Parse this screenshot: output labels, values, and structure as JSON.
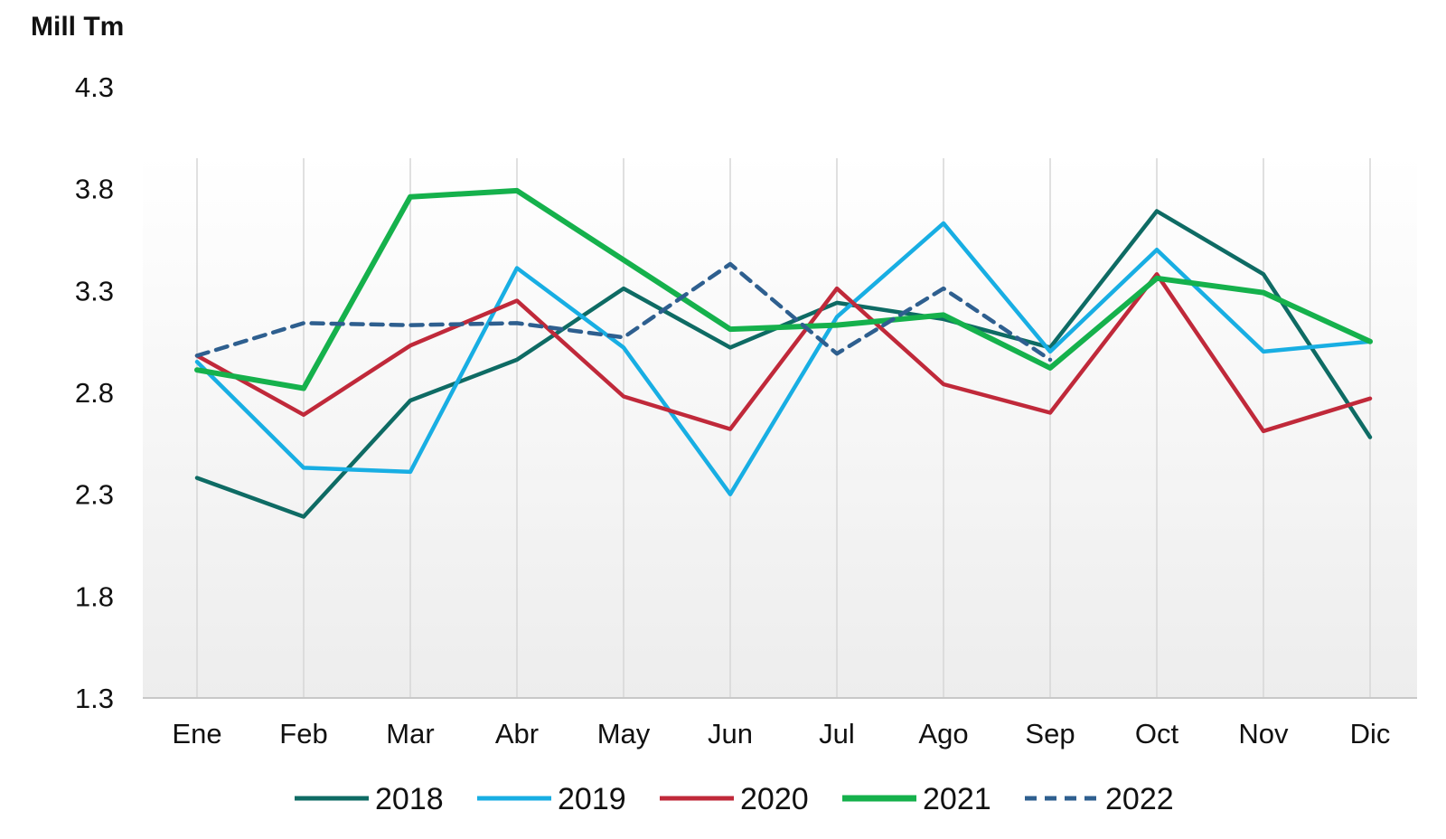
{
  "chart_data": {
    "type": "line",
    "ylabel": "Mill Tm",
    "ylim": [
      1.3,
      4.3
    ],
    "yticks": [
      "1.3",
      "1.8",
      "2.3",
      "2.8",
      "3.3",
      "3.8",
      "4.3"
    ],
    "categories": [
      "Ene",
      "Feb",
      "Mar",
      "Abr",
      "May",
      "Jun",
      "Jul",
      "Ago",
      "Sep",
      "Oct",
      "Nov",
      "Dic"
    ],
    "grid": "vertical",
    "legend_position": "bottom",
    "series": [
      {
        "name": "2018",
        "color": "#0e6b64",
        "dashed": false,
        "values": [
          2.38,
          2.19,
          2.76,
          2.96,
          3.31,
          3.02,
          3.24,
          3.16,
          3.02,
          3.69,
          3.38,
          2.58
        ]
      },
      {
        "name": "2019",
        "color": "#18aee3",
        "dashed": false,
        "values": [
          2.95,
          2.43,
          2.41,
          3.41,
          3.02,
          2.3,
          3.17,
          3.63,
          3.0,
          3.5,
          3.0,
          3.05
        ]
      },
      {
        "name": "2020",
        "color": "#c0293a",
        "dashed": false,
        "values": [
          2.98,
          2.69,
          3.03,
          3.25,
          2.78,
          2.62,
          3.31,
          2.84,
          2.7,
          3.38,
          2.61,
          2.77
        ]
      },
      {
        "name": "2021",
        "color": "#15b14c",
        "dashed": false,
        "values": [
          2.91,
          2.82,
          3.76,
          3.79,
          3.45,
          3.11,
          3.13,
          3.18,
          2.92,
          3.36,
          3.29,
          3.05
        ]
      },
      {
        "name": "2022",
        "color": "#2e5f8f",
        "dashed": true,
        "values": [
          2.98,
          3.14,
          3.13,
          3.14,
          3.07,
          3.43,
          2.99,
          3.31,
          2.96,
          null,
          null,
          null
        ]
      }
    ]
  }
}
